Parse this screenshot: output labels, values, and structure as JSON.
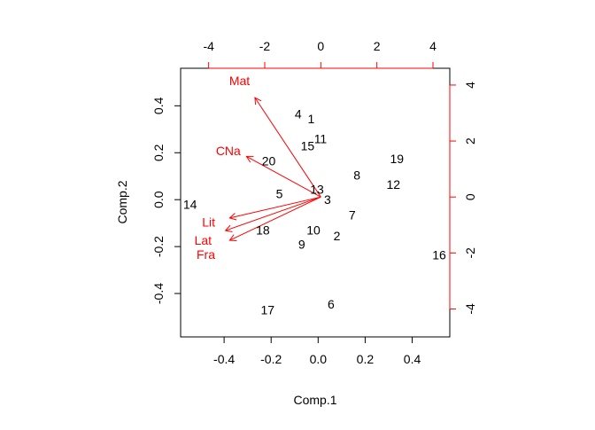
{
  "chart_data": {
    "type": "biplot",
    "xlabel": "Comp.1",
    "ylabel": "Comp.2",
    "x_ticks": [
      "-0.4",
      "-0.2",
      "0.0",
      "0.2",
      "0.4"
    ],
    "y_ticks": [
      "-0.4",
      "-0.2",
      "0.0",
      "0.2",
      "0.4"
    ],
    "xlim": [
      -0.585,
      0.56
    ],
    "ylim": [
      -0.585,
      0.56
    ],
    "secondary_x_ticks": [
      "-4",
      "-2",
      "0",
      "2",
      "4"
    ],
    "secondary_y_ticks": [
      "-4",
      "-2",
      "0",
      "2",
      "4"
    ],
    "secondary_lim": [
      -5,
      4.6
    ],
    "grid": false,
    "points_color": "#000000",
    "loadings_color": "#ff0000",
    "points": [
      {
        "label": "1",
        "x": -0.03,
        "y": 0.345
      },
      {
        "label": "2",
        "x": 0.08,
        "y": -0.155
      },
      {
        "label": "3",
        "x": 0.04,
        "y": 0.0
      },
      {
        "label": "4",
        "x": -0.085,
        "y": 0.365
      },
      {
        "label": "5",
        "x": -0.165,
        "y": 0.025
      },
      {
        "label": "6",
        "x": 0.055,
        "y": -0.445
      },
      {
        "label": "7",
        "x": 0.145,
        "y": -0.065
      },
      {
        "label": "8",
        "x": 0.165,
        "y": 0.105
      },
      {
        "label": "9",
        "x": -0.07,
        "y": -0.19
      },
      {
        "label": "10",
        "x": -0.02,
        "y": -0.13
      },
      {
        "label": "11",
        "x": 0.01,
        "y": 0.26
      },
      {
        "label": "12",
        "x": 0.32,
        "y": 0.065
      },
      {
        "label": "13",
        "x": -0.005,
        "y": 0.045
      },
      {
        "label": "14",
        "x": -0.545,
        "y": -0.02
      },
      {
        "label": "15",
        "x": -0.045,
        "y": 0.23
      },
      {
        "label": "16",
        "x": 0.515,
        "y": -0.235
      },
      {
        "label": "17",
        "x": -0.215,
        "y": -0.47
      },
      {
        "label": "18",
        "x": -0.235,
        "y": -0.13
      },
      {
        "label": "19",
        "x": 0.335,
        "y": 0.175
      },
      {
        "label": "20",
        "x": -0.21,
        "y": 0.165
      }
    ],
    "loadings": [
      {
        "label": "Mat",
        "x": -2.35,
        "y": 3.55,
        "label_x": -2.9,
        "label_y": 4.15
      },
      {
        "label": "CNa",
        "x": -2.65,
        "y": 1.45,
        "label_x": -3.3,
        "label_y": 1.65
      },
      {
        "label": "Lit",
        "x": -3.25,
        "y": -0.75,
        "label_x": -4.0,
        "label_y": -0.9
      },
      {
        "label": "Lat",
        "x": -3.4,
        "y": -1.2,
        "label_x": -4.2,
        "label_y": -1.55
      },
      {
        "label": "Fra",
        "x": -3.25,
        "y": -1.55,
        "label_x": -4.1,
        "label_y": -2.05
      }
    ]
  }
}
